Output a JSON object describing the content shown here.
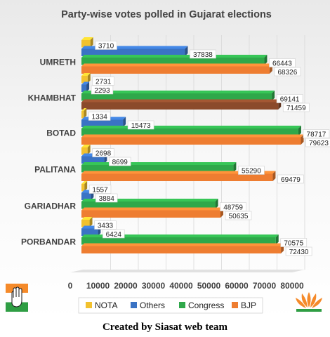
{
  "chart_data": {
    "type": "bar",
    "orientation": "horizontal",
    "style": "3d",
    "title": "Party-wise votes polled in Gujarat elections",
    "categories": [
      "UMRETH",
      "KHAMBHAT",
      "BOTAD",
      "PALITANA",
      "GARIADHAR",
      "PORBANDAR"
    ],
    "series": [
      {
        "name": "NOTA",
        "color": "#f2c12e",
        "values": [
          3710,
          2731,
          1334,
          2698,
          1557,
          3433
        ]
      },
      {
        "name": "Others",
        "color": "#3a73c4",
        "values": [
          37838,
          2293,
          15473,
          8699,
          3884,
          6424
        ]
      },
      {
        "name": "Congress",
        "color": "#2fa84a",
        "values": [
          66443,
          69141,
          78717,
          55290,
          48759,
          70575
        ]
      },
      {
        "name": "BJP",
        "color": "#ee7d31",
        "values": [
          68326,
          71459,
          79623,
          69479,
          50635,
          72430
        ]
      }
    ],
    "xlim": [
      0,
      80000
    ],
    "xticks": [
      "0",
      "10000",
      "20000",
      "30000",
      "40000",
      "50000",
      "60000",
      "70000",
      "80000"
    ],
    "legend_position": "bottom",
    "grid": true,
    "bjp_override_colors": {
      "KHAMBHAT": "#8b4a2b"
    }
  },
  "credit": "Created by Siasat web team",
  "logos": {
    "left": "congress-hand-logo",
    "right": "bjp-lotus-logo"
  }
}
